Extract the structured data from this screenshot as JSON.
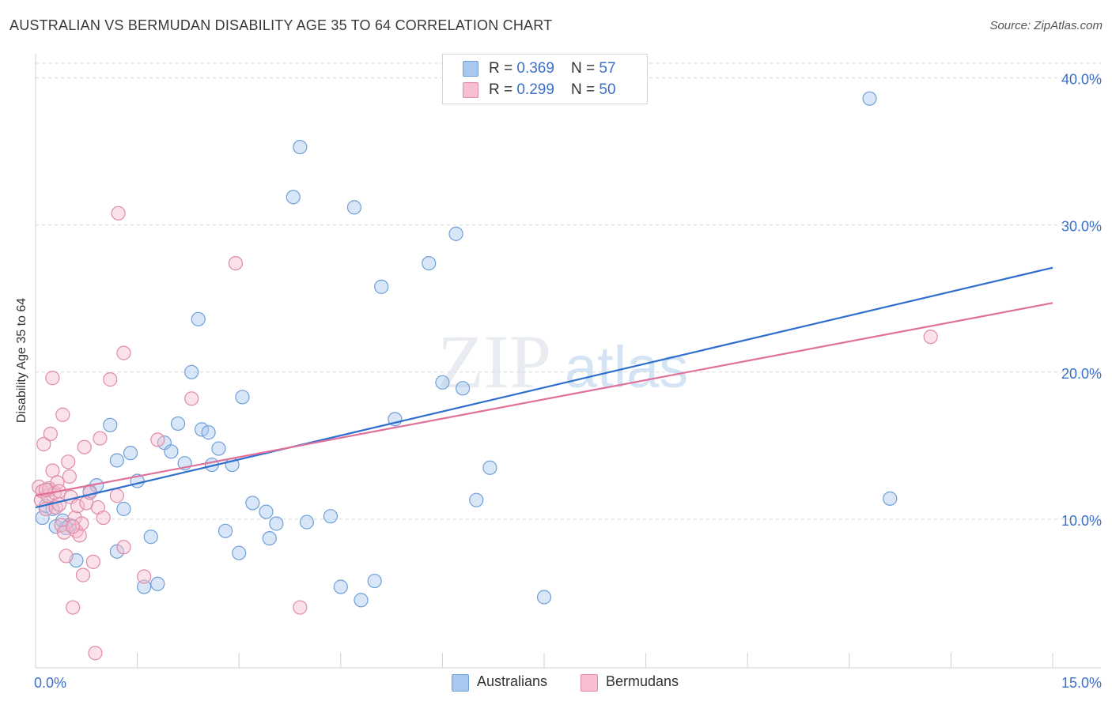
{
  "header": {
    "title": "AUSTRALIAN VS BERMUDAN DISABILITY AGE 35 TO 64 CORRELATION CHART",
    "source": "Source: ZipAtlas.com"
  },
  "watermark": {
    "zip": "ZIP",
    "atlas": "atlas"
  },
  "legend_top": [
    {
      "r_label": "R = ",
      "r_value": "0.369",
      "n_label": "N = ",
      "n_value": "57",
      "color": "#a9c8f0",
      "border": "#6f9fd8"
    },
    {
      "r_label": "R = ",
      "r_value": "0.299",
      "n_label": "N = ",
      "n_value": "50",
      "color": "#f7bfd0",
      "border": "#e08aa7"
    }
  ],
  "legend_bottom": [
    {
      "label": "Australians",
      "color": "#a9c8f0",
      "border": "#6f9fd8"
    },
    {
      "label": "Bermudans",
      "color": "#f7bfd0",
      "border": "#e08aa7"
    }
  ],
  "chart_data": {
    "type": "scatter",
    "title": "AUSTRALIAN VS BERMUDAN DISABILITY AGE 35 TO 64 CORRELATION CHART",
    "xlabel": "",
    "ylabel": "Disability Age 35 to 64",
    "xlim": [
      0,
      15
    ],
    "ylim": [
      0,
      41
    ],
    "x_tick_labels": [
      {
        "value": 0,
        "label": "0.0%"
      },
      {
        "value": 15,
        "label": "15.0%"
      }
    ],
    "y_tick_labels": [
      {
        "value": 10,
        "label": "10.0%"
      },
      {
        "value": 20,
        "label": "20.0%"
      },
      {
        "value": 30,
        "label": "30.0%"
      },
      {
        "value": 40,
        "label": "40.0%"
      }
    ],
    "grid": true,
    "legend_position": "top-center",
    "series": [
      {
        "name": "Australians",
        "color": "#6f9fd8",
        "fill": "#a9c8f0",
        "trend_color": "#2f6fcc",
        "trend": {
          "x": [
            0,
            15
          ],
          "y": [
            10.8,
            27.1
          ]
        },
        "points": [
          [
            0.1,
            10.1
          ],
          [
            0.15,
            10.9
          ],
          [
            0.2,
            12.0
          ],
          [
            0.3,
            9.5
          ],
          [
            0.4,
            9.9
          ],
          [
            0.5,
            9.6
          ],
          [
            0.6,
            7.2
          ],
          [
            0.8,
            11.9
          ],
          [
            0.9,
            12.3
          ],
          [
            1.1,
            16.4
          ],
          [
            1.2,
            14.0
          ],
          [
            1.2,
            7.8
          ],
          [
            1.3,
            10.7
          ],
          [
            1.4,
            14.5
          ],
          [
            1.5,
            12.6
          ],
          [
            1.6,
            5.4
          ],
          [
            1.7,
            8.8
          ],
          [
            1.8,
            5.6
          ],
          [
            1.9,
            15.2
          ],
          [
            2.0,
            14.6
          ],
          [
            2.1,
            16.5
          ],
          [
            2.2,
            13.8
          ],
          [
            2.3,
            20.0
          ],
          [
            2.4,
            23.6
          ],
          [
            2.45,
            16.1
          ],
          [
            2.55,
            15.9
          ],
          [
            2.6,
            13.7
          ],
          [
            2.7,
            14.8
          ],
          [
            2.8,
            9.2
          ],
          [
            2.9,
            13.7
          ],
          [
            3.0,
            7.7
          ],
          [
            3.05,
            18.3
          ],
          [
            3.2,
            11.1
          ],
          [
            3.4,
            10.5
          ],
          [
            3.45,
            8.7
          ],
          [
            3.55,
            9.7
          ],
          [
            3.8,
            31.9
          ],
          [
            3.9,
            35.3
          ],
          [
            4.0,
            9.8
          ],
          [
            4.35,
            10.2
          ],
          [
            4.5,
            5.4
          ],
          [
            4.7,
            31.2
          ],
          [
            4.8,
            4.5
          ],
          [
            5.0,
            5.8
          ],
          [
            5.1,
            25.8
          ],
          [
            5.3,
            16.8
          ],
          [
            5.8,
            27.4
          ],
          [
            6.0,
            19.3
          ],
          [
            6.2,
            29.4
          ],
          [
            6.3,
            18.9
          ],
          [
            6.5,
            11.3
          ],
          [
            6.7,
            13.5
          ],
          [
            7.5,
            4.7
          ],
          [
            12.3,
            38.6
          ],
          [
            12.6,
            11.4
          ],
          [
            0.25,
            10.7
          ],
          [
            0.45,
            9.4
          ]
        ]
      },
      {
        "name": "Bermudans",
        "color": "#e08aa7",
        "fill": "#f7bfd0",
        "trend_color": "#e0709a",
        "trend": {
          "x": [
            0,
            15
          ],
          "y": [
            11.6,
            24.7
          ]
        },
        "points": [
          [
            0.05,
            12.2
          ],
          [
            0.08,
            11.3
          ],
          [
            0.1,
            11.9
          ],
          [
            0.12,
            15.1
          ],
          [
            0.15,
            10.7
          ],
          [
            0.18,
            11.6
          ],
          [
            0.2,
            12.1
          ],
          [
            0.22,
            15.8
          ],
          [
            0.25,
            13.3
          ],
          [
            0.25,
            19.6
          ],
          [
            0.28,
            11.8
          ],
          [
            0.3,
            10.8
          ],
          [
            0.32,
            12.5
          ],
          [
            0.35,
            11.9
          ],
          [
            0.38,
            9.6
          ],
          [
            0.4,
            17.1
          ],
          [
            0.42,
            9.1
          ],
          [
            0.45,
            7.5
          ],
          [
            0.48,
            13.9
          ],
          [
            0.5,
            12.9
          ],
          [
            0.52,
            11.5
          ],
          [
            0.55,
            4.0
          ],
          [
            0.58,
            10.1
          ],
          [
            0.6,
            9.2
          ],
          [
            0.62,
            10.9
          ],
          [
            0.65,
            8.9
          ],
          [
            0.68,
            9.7
          ],
          [
            0.7,
            6.2
          ],
          [
            0.72,
            14.9
          ],
          [
            0.75,
            11.1
          ],
          [
            0.8,
            11.8
          ],
          [
            0.85,
            7.1
          ],
          [
            0.88,
            0.9
          ],
          [
            0.92,
            10.8
          ],
          [
            0.95,
            15.5
          ],
          [
            1.0,
            10.1
          ],
          [
            1.1,
            19.5
          ],
          [
            1.2,
            11.6
          ],
          [
            1.22,
            30.8
          ],
          [
            1.3,
            21.3
          ],
          [
            1.3,
            8.1
          ],
          [
            1.6,
            6.1
          ],
          [
            1.8,
            15.4
          ],
          [
            2.3,
            18.2
          ],
          [
            2.95,
            27.4
          ],
          [
            3.9,
            4.0
          ],
          [
            13.2,
            22.4
          ],
          [
            0.15,
            12.0
          ],
          [
            0.35,
            11.0
          ],
          [
            0.55,
            9.5
          ]
        ]
      }
    ]
  }
}
